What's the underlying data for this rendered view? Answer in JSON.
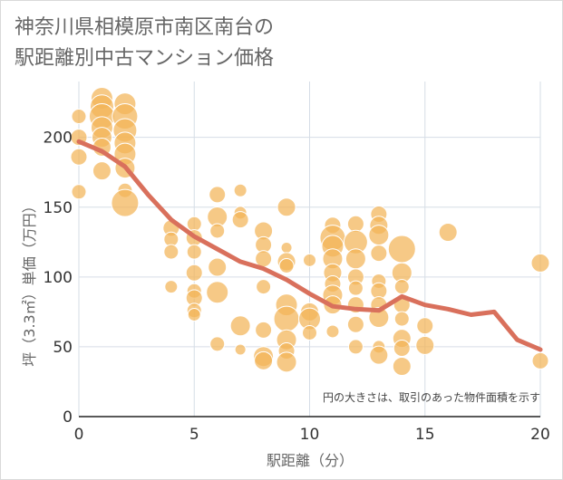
{
  "page_title": [
    "神奈川県相模原市南区南台の",
    "駅距離別中古マンション価格"
  ],
  "chart_data": {
    "type": "scatter",
    "title": "神奈川県相模原市南区南台の駅距離別中古マンション価格",
    "xlabel": "駅距離（分）",
    "ylabel": "坪（3.3㎡）単価（万円）",
    "xlim": [
      0,
      20
    ],
    "ylim": [
      0,
      240
    ],
    "x_ticks": [
      0,
      5,
      10,
      15,
      20
    ],
    "y_ticks": [
      0,
      50,
      100,
      150,
      200
    ],
    "grid": true,
    "note": "円の大きさは、取引のあった物件面積を示す",
    "bubble_color": "#f2b457",
    "line_color": "#d9705c",
    "trend_line": {
      "x": [
        0,
        1,
        2,
        3,
        4,
        5,
        6,
        7,
        8,
        9,
        10,
        11,
        12,
        13,
        14,
        15,
        16,
        17,
        18,
        19,
        20
      ],
      "y": [
        197,
        190,
        179,
        159,
        141,
        129,
        120,
        111,
        106,
        98,
        88,
        79,
        77,
        76,
        86,
        80,
        77,
        73,
        75,
        55,
        48
      ]
    },
    "bubbles": [
      {
        "x": 0,
        "y": 215,
        "s": 8
      },
      {
        "x": 0,
        "y": 200,
        "s": 9
      },
      {
        "x": 0,
        "y": 186,
        "s": 9
      },
      {
        "x": 0,
        "y": 161,
        "s": 8
      },
      {
        "x": 1,
        "y": 228,
        "s": 12
      },
      {
        "x": 1,
        "y": 222,
        "s": 13
      },
      {
        "x": 1,
        "y": 215,
        "s": 14
      },
      {
        "x": 1,
        "y": 207,
        "s": 12
      },
      {
        "x": 1,
        "y": 200,
        "s": 11
      },
      {
        "x": 1,
        "y": 193,
        "s": 10
      },
      {
        "x": 1,
        "y": 176,
        "s": 10
      },
      {
        "x": 2,
        "y": 224,
        "s": 12
      },
      {
        "x": 2,
        "y": 215,
        "s": 14
      },
      {
        "x": 2,
        "y": 205,
        "s": 13
      },
      {
        "x": 2,
        "y": 196,
        "s": 12
      },
      {
        "x": 2,
        "y": 188,
        "s": 12
      },
      {
        "x": 2,
        "y": 178,
        "s": 11
      },
      {
        "x": 2,
        "y": 162,
        "s": 8
      },
      {
        "x": 2,
        "y": 153,
        "s": 15
      },
      {
        "x": 4,
        "y": 135,
        "s": 9
      },
      {
        "x": 4,
        "y": 127,
        "s": 8
      },
      {
        "x": 4,
        "y": 118,
        "s": 8
      },
      {
        "x": 4,
        "y": 93,
        "s": 7
      },
      {
        "x": 5,
        "y": 138,
        "s": 8
      },
      {
        "x": 5,
        "y": 128,
        "s": 9
      },
      {
        "x": 5,
        "y": 118,
        "s": 8
      },
      {
        "x": 5,
        "y": 103,
        "s": 9
      },
      {
        "x": 5,
        "y": 90,
        "s": 8
      },
      {
        "x": 5,
        "y": 85,
        "s": 9
      },
      {
        "x": 5,
        "y": 76,
        "s": 8
      },
      {
        "x": 5,
        "y": 73,
        "s": 7
      },
      {
        "x": 6,
        "y": 159,
        "s": 9
      },
      {
        "x": 6,
        "y": 143,
        "s": 11
      },
      {
        "x": 6,
        "y": 133,
        "s": 8
      },
      {
        "x": 6,
        "y": 107,
        "s": 10
      },
      {
        "x": 6,
        "y": 89,
        "s": 12
      },
      {
        "x": 6,
        "y": 52,
        "s": 8
      },
      {
        "x": 7,
        "y": 162,
        "s": 7
      },
      {
        "x": 7,
        "y": 146,
        "s": 7
      },
      {
        "x": 7,
        "y": 141,
        "s": 9
      },
      {
        "x": 7,
        "y": 65,
        "s": 11
      },
      {
        "x": 7,
        "y": 48,
        "s": 6
      },
      {
        "x": 8,
        "y": 133,
        "s": 10
      },
      {
        "x": 8,
        "y": 123,
        "s": 9
      },
      {
        "x": 8,
        "y": 113,
        "s": 9
      },
      {
        "x": 8,
        "y": 93,
        "s": 8
      },
      {
        "x": 8,
        "y": 62,
        "s": 9
      },
      {
        "x": 8,
        "y": 43,
        "s": 11
      },
      {
        "x": 8,
        "y": 40,
        "s": 10
      },
      {
        "x": 9,
        "y": 150,
        "s": 10
      },
      {
        "x": 9,
        "y": 121,
        "s": 6
      },
      {
        "x": 9,
        "y": 111,
        "s": 10
      },
      {
        "x": 9,
        "y": 108,
        "s": 8
      },
      {
        "x": 9,
        "y": 80,
        "s": 12
      },
      {
        "x": 9,
        "y": 70,
        "s": 14
      },
      {
        "x": 9,
        "y": 55,
        "s": 11
      },
      {
        "x": 9,
        "y": 47,
        "s": 9
      },
      {
        "x": 9,
        "y": 39,
        "s": 11
      },
      {
        "x": 10,
        "y": 112,
        "s": 7
      },
      {
        "x": 10,
        "y": 75,
        "s": 10
      },
      {
        "x": 10,
        "y": 70,
        "s": 12
      },
      {
        "x": 10,
        "y": 60,
        "s": 8
      },
      {
        "x": 11,
        "y": 137,
        "s": 9
      },
      {
        "x": 11,
        "y": 128,
        "s": 14
      },
      {
        "x": 11,
        "y": 122,
        "s": 12
      },
      {
        "x": 11,
        "y": 113,
        "s": 11
      },
      {
        "x": 11,
        "y": 103,
        "s": 10
      },
      {
        "x": 11,
        "y": 95,
        "s": 9
      },
      {
        "x": 11,
        "y": 87,
        "s": 11
      },
      {
        "x": 11,
        "y": 80,
        "s": 10
      },
      {
        "x": 11,
        "y": 61,
        "s": 7
      },
      {
        "x": 12,
        "y": 138,
        "s": 9
      },
      {
        "x": 12,
        "y": 125,
        "s": 13
      },
      {
        "x": 12,
        "y": 113,
        "s": 11
      },
      {
        "x": 12,
        "y": 100,
        "s": 9
      },
      {
        "x": 12,
        "y": 92,
        "s": 8
      },
      {
        "x": 12,
        "y": 80,
        "s": 9
      },
      {
        "x": 12,
        "y": 66,
        "s": 9
      },
      {
        "x": 12,
        "y": 50,
        "s": 8
      },
      {
        "x": 13,
        "y": 145,
        "s": 9
      },
      {
        "x": 13,
        "y": 137,
        "s": 10
      },
      {
        "x": 13,
        "y": 130,
        "s": 11
      },
      {
        "x": 13,
        "y": 117,
        "s": 9
      },
      {
        "x": 13,
        "y": 97,
        "s": 8
      },
      {
        "x": 13,
        "y": 90,
        "s": 9
      },
      {
        "x": 13,
        "y": 80,
        "s": 9
      },
      {
        "x": 13,
        "y": 71,
        "s": 11
      },
      {
        "x": 13,
        "y": 50,
        "s": 7
      },
      {
        "x": 13,
        "y": 44,
        "s": 10
      },
      {
        "x": 14,
        "y": 120,
        "s": 15
      },
      {
        "x": 14,
        "y": 103,
        "s": 11
      },
      {
        "x": 14,
        "y": 93,
        "s": 8
      },
      {
        "x": 14,
        "y": 80,
        "s": 9
      },
      {
        "x": 14,
        "y": 70,
        "s": 8
      },
      {
        "x": 14,
        "y": 56,
        "s": 10
      },
      {
        "x": 14,
        "y": 49,
        "s": 9
      },
      {
        "x": 14,
        "y": 36,
        "s": 10
      },
      {
        "x": 15,
        "y": 65,
        "s": 9
      },
      {
        "x": 15,
        "y": 51,
        "s": 10
      },
      {
        "x": 16,
        "y": 132,
        "s": 10
      },
      {
        "x": 20,
        "y": 110,
        "s": 10
      },
      {
        "x": 20,
        "y": 40,
        "s": 9
      }
    ]
  }
}
